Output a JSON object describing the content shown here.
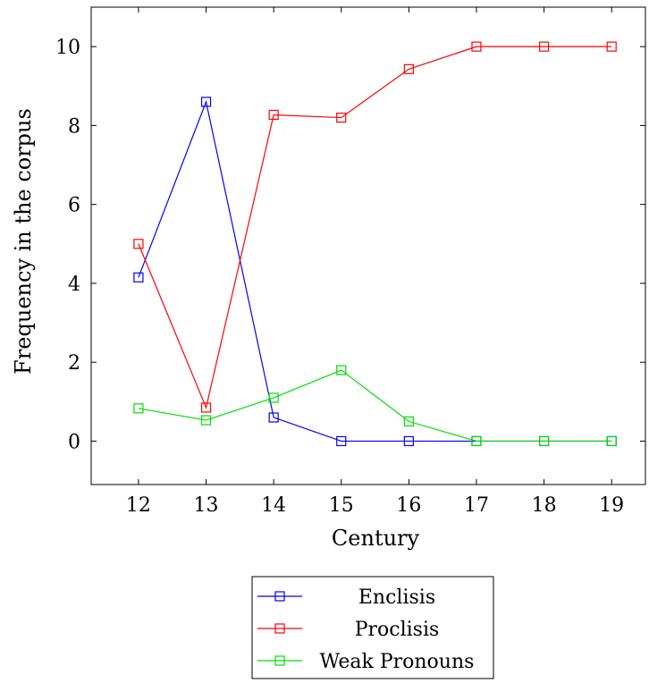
{
  "chart_data": {
    "type": "line",
    "title": "",
    "xlabel": "Century",
    "ylabel": "Frequency in the corpus",
    "x": [
      12,
      13,
      14,
      15,
      16,
      17,
      18,
      19
    ],
    "xlim": [
      11.3,
      19.5
    ],
    "ylim": [
      -1.1,
      11
    ],
    "yticks": [
      0,
      2,
      4,
      6,
      8,
      10
    ],
    "grid": false,
    "legend_position": "bottom-center",
    "marker": "open-square",
    "series": [
      {
        "name": "Enclisis",
        "color": "#0000ff",
        "values": [
          4.15,
          8.6,
          0.6,
          0.0,
          0.0,
          0.0,
          0.0,
          0.0
        ]
      },
      {
        "name": "Proclisis",
        "color": "#ff0000",
        "values": [
          5.0,
          0.85,
          8.27,
          8.2,
          9.43,
          10.0,
          10.0,
          10.0
        ]
      },
      {
        "name": "Weak Pronouns",
        "color": "#00dd00",
        "values": [
          0.83,
          0.53,
          1.1,
          1.8,
          0.5,
          0.0,
          0.0,
          0.0
        ]
      }
    ]
  }
}
